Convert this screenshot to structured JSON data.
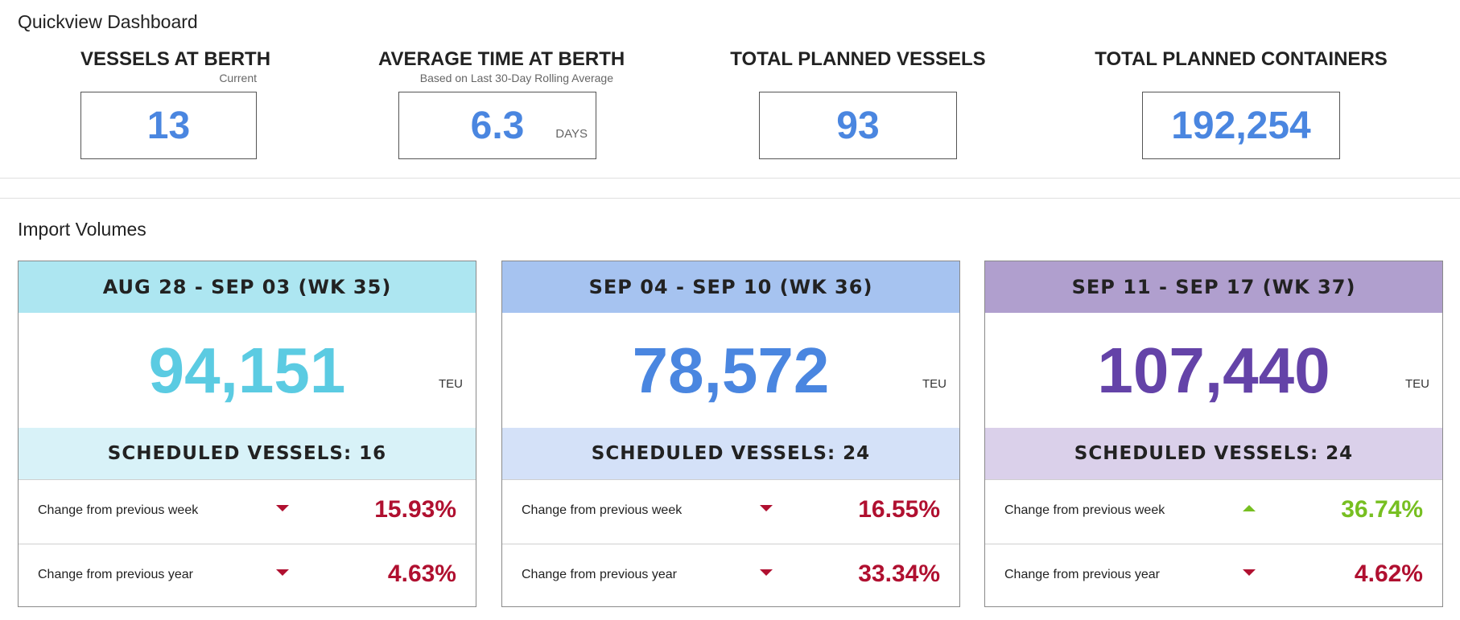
{
  "quickview": {
    "title": "Quickview Dashboard",
    "kpis": [
      {
        "title": "VESSELS AT BERTH",
        "subtitle": "Current",
        "value": "13",
        "unit": ""
      },
      {
        "title": "AVERAGE TIME AT BERTH",
        "subtitle": "Based on Last 30-Day Rolling Average",
        "value": "6.3",
        "unit": "DAYS"
      },
      {
        "title": "TOTAL PLANNED VESSELS",
        "subtitle": "",
        "value": "93",
        "unit": ""
      },
      {
        "title": "TOTAL PLANNED CONTAINERS",
        "subtitle": "",
        "value": "192,254",
        "unit": ""
      }
    ]
  },
  "import": {
    "title": "Import Volumes",
    "cards": [
      {
        "week": "AUG 28 - SEP 03 (WK 35)",
        "volume": "94,151",
        "unit": "TEU",
        "scheduled": "SCHEDULED VESSELS: 16",
        "changes": [
          {
            "label": "Change from previous week",
            "direction": "down",
            "value": "15.93%"
          },
          {
            "label": "Change from previous year",
            "direction": "down",
            "value": "4.63%"
          }
        ],
        "colors": {
          "header": "#ade6f1",
          "sched": "#d8f2f8",
          "number": "#5bcbe2"
        }
      },
      {
        "week": "SEP 04 - SEP 10 (WK 36)",
        "volume": "78,572",
        "unit": "TEU",
        "scheduled": "SCHEDULED VESSELS: 24",
        "changes": [
          {
            "label": "Change from previous week",
            "direction": "down",
            "value": "16.55%"
          },
          {
            "label": "Change from previous year",
            "direction": "down",
            "value": "33.34%"
          }
        ],
        "colors": {
          "header": "#a6c3f0",
          "sched": "#d4e1f8",
          "number": "#4a86e0"
        }
      },
      {
        "week": "SEP 11 - SEP 17 (WK 37)",
        "volume": "107,440",
        "unit": "TEU",
        "scheduled": "SCHEDULED VESSELS: 24",
        "changes": [
          {
            "label": "Change from previous week",
            "direction": "up",
            "value": "36.74%"
          },
          {
            "label": "Change from previous year",
            "direction": "down",
            "value": "4.62%"
          }
        ],
        "colors": {
          "header": "#b09fce",
          "sched": "#dad0ea",
          "number": "#6443a8"
        }
      }
    ]
  }
}
